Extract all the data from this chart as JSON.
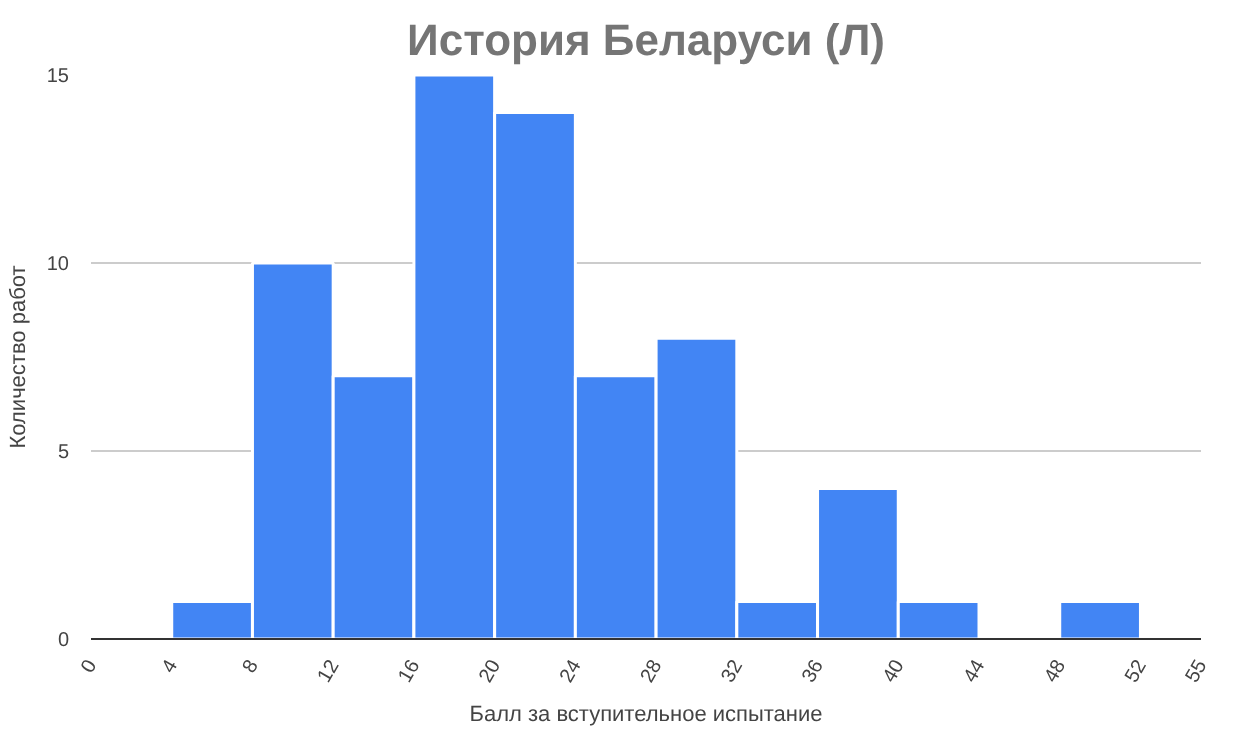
{
  "chart_data": {
    "type": "histogram",
    "title": "История Беларуси (Л)",
    "xlabel": "Балл за вступительное испытание",
    "ylabel": "Количество работ",
    "bins": [
      4,
      8,
      12,
      16,
      20,
      24,
      28,
      32,
      36,
      40,
      44,
      48,
      52
    ],
    "values": [
      1,
      10,
      7,
      15,
      14,
      7,
      8,
      1,
      4,
      1,
      0,
      1
    ],
    "color": "#4285f4",
    "xlim": [
      0,
      55
    ],
    "xticks": [
      0,
      4,
      8,
      12,
      16,
      20,
      24,
      28,
      32,
      36,
      40,
      44,
      48,
      52,
      55
    ],
    "ylim": [
      0,
      15
    ],
    "yticks": [
      0,
      5,
      10,
      15
    ],
    "grid": "y"
  }
}
